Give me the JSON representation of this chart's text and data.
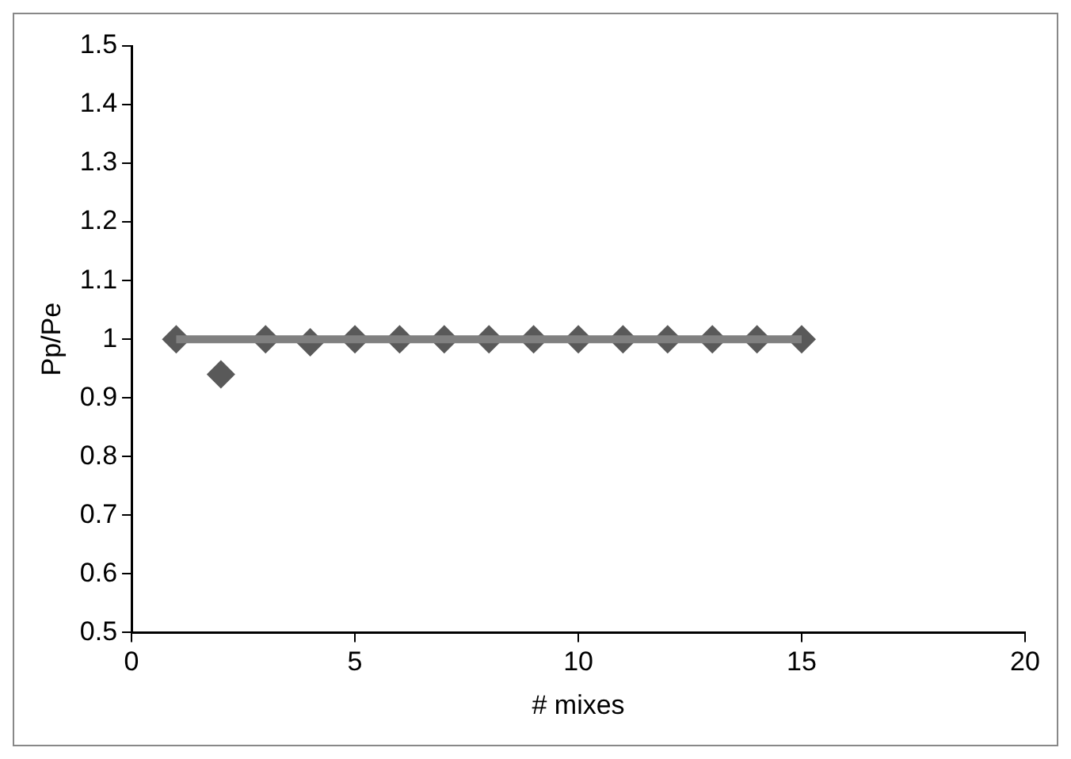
{
  "chart_data": {
    "type": "scatter",
    "xlabel": "# mixes",
    "ylabel": "Pp/Pe",
    "xlim": [
      0,
      20
    ],
    "xticks": [
      0,
      5,
      10,
      15,
      20
    ],
    "ylim": [
      0.5,
      1.5
    ],
    "yticks": [
      0.5,
      0.6,
      0.7,
      0.8,
      0.9,
      1,
      1.1,
      1.2,
      1.3,
      1.4,
      1.5
    ],
    "grid": false,
    "legend": false,
    "series": [
      {
        "type": "line",
        "color": "#808080",
        "x": [
          1,
          15
        ],
        "values": [
          1,
          1
        ],
        "marker": "none"
      },
      {
        "type": "scatter",
        "color": "#595959",
        "x": [
          1,
          2,
          3,
          4,
          5,
          6,
          7,
          8,
          9,
          10,
          11,
          12,
          13,
          14,
          15
        ],
        "values": [
          1,
          0.94,
          1,
          0.995,
          1,
          1,
          1,
          1,
          1,
          1,
          1,
          1,
          1,
          1,
          1
        ],
        "marker": "diamond"
      }
    ]
  }
}
